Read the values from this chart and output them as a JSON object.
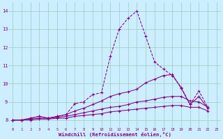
{
  "xlabel": "Windchill (Refroidissement éolien,°C)",
  "bg_color": "#cceeff",
  "line_color": "#880088",
  "grid_color": "#99ccbb",
  "xlim": [
    -0.5,
    23.5
  ],
  "ylim": [
    7.6,
    14.5
  ],
  "yticks": [
    8,
    9,
    10,
    11,
    12,
    13,
    14
  ],
  "xticks": [
    0,
    1,
    2,
    3,
    4,
    5,
    6,
    7,
    8,
    9,
    10,
    11,
    12,
    13,
    14,
    15,
    16,
    17,
    18,
    19,
    20,
    21,
    22,
    23
  ],
  "series": [
    [
      8.0,
      8.0,
      8.1,
      8.2,
      8.1,
      8.2,
      8.3,
      8.9,
      9.0,
      9.4,
      9.5,
      11.5,
      13.0,
      13.6,
      14.0,
      12.6,
      11.2,
      10.8,
      10.45,
      9.8,
      8.85,
      9.6,
      8.7
    ],
    [
      8.0,
      8.0,
      8.1,
      8.2,
      8.1,
      8.2,
      8.3,
      8.5,
      8.65,
      8.85,
      9.05,
      9.3,
      9.45,
      9.55,
      9.7,
      10.05,
      10.25,
      10.45,
      10.5,
      9.75,
      8.85,
      9.3,
      8.65
    ],
    [
      8.0,
      8.0,
      8.05,
      8.1,
      8.1,
      8.15,
      8.2,
      8.3,
      8.4,
      8.5,
      8.6,
      8.7,
      8.75,
      8.85,
      9.0,
      9.05,
      9.15,
      9.25,
      9.3,
      9.3,
      9.05,
      9.0,
      8.7
    ],
    [
      8.0,
      8.0,
      8.0,
      8.05,
      8.05,
      8.1,
      8.1,
      8.2,
      8.25,
      8.3,
      8.35,
      8.45,
      8.5,
      8.55,
      8.6,
      8.65,
      8.7,
      8.75,
      8.8,
      8.8,
      8.7,
      8.7,
      8.5
    ]
  ]
}
